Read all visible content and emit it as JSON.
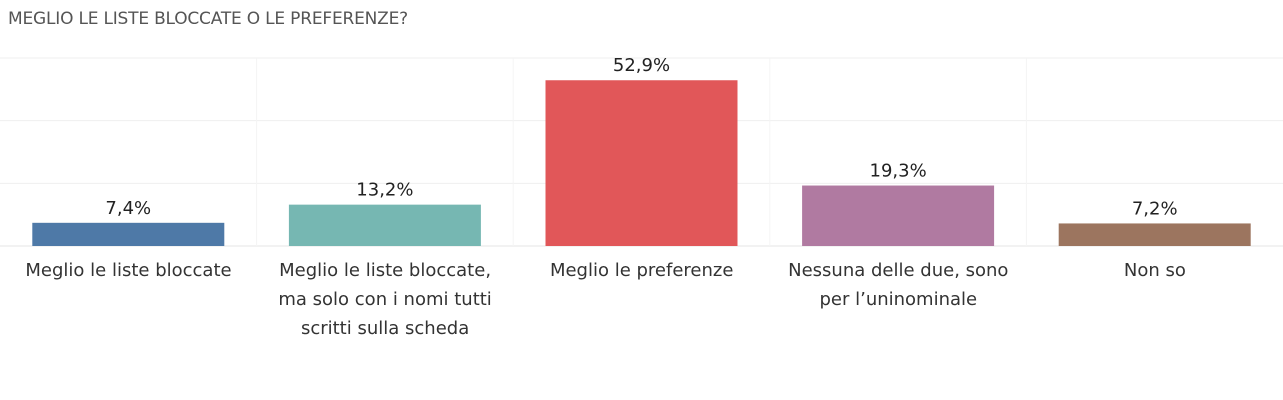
{
  "chart_data": {
    "type": "bar",
    "title": "MEGLIO LE LISTE BLOCCATE O LE PREFERENZE?",
    "categories": [
      "Meglio le liste bloccate",
      "Meglio le liste bloccate, ma solo con i nomi tutti scritti sulla scheda",
      "Meglio le preferenze",
      "Nessuna delle due, sono per l’uninominale",
      "Non so"
    ],
    "category_lines": [
      [
        "Meglio le liste bloccate"
      ],
      [
        "Meglio le liste bloccate,",
        "ma solo con i nomi tutti",
        "scritti sulla scheda"
      ],
      [
        "Meglio le preferenze"
      ],
      [
        "Nessuna delle due, sono",
        "per l’uninominale"
      ],
      [
        "Non so"
      ]
    ],
    "values": [
      7.4,
      13.2,
      52.9,
      19.3,
      7.2
    ],
    "value_labels": [
      "7,4%",
      "13,2%",
      "52,9%",
      "19,3%",
      "7,2%"
    ],
    "colors": [
      "#4e79a7",
      "#76b7b2",
      "#e15759",
      "#b07aa1",
      "#9c755f"
    ],
    "ylim": [
      0,
      60
    ],
    "grid": true,
    "xlabel": "",
    "ylabel": ""
  }
}
